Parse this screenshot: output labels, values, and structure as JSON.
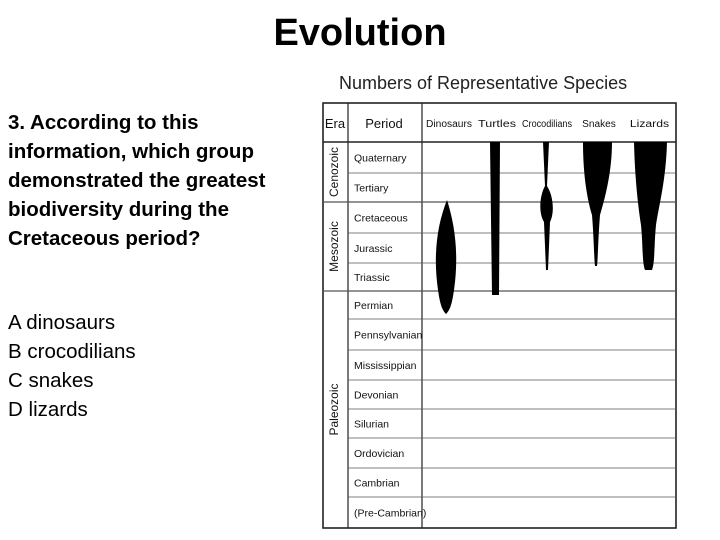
{
  "page_title": "Evolution",
  "question": {
    "text": "3.  According to this information, which group demonstrated the greatest biodiversity during the Cretaceous period?",
    "choices": [
      {
        "letter": "A",
        "text": "dinosaurs"
      },
      {
        "letter": "B",
        "text": "crocodilians"
      },
      {
        "letter": "C",
        "text": "snakes"
      },
      {
        "letter": "D",
        "text": "lizards"
      }
    ]
  },
  "chart_data": {
    "type": "diagram",
    "title": "Numbers of Representative Species",
    "headers": {
      "era": "Era",
      "period": "Period"
    },
    "groups": [
      "Dinosaurs",
      "Turtles",
      "Crocodilians",
      "Snakes",
      "Lizards"
    ],
    "eras": [
      {
        "name": "Cenozoic",
        "periods": [
          "Quaternary",
          "Tertiary"
        ]
      },
      {
        "name": "Mesozoic",
        "periods": [
          "Cretaceous",
          "Jurassic",
          "Triassic"
        ]
      },
      {
        "name": "Paleozoic",
        "periods": [
          "Permian",
          "Pennsylvanian",
          "Mississippian",
          "Devonian",
          "Silurian",
          "Ordovician",
          "Cambrian",
          "(Pre-Cambrian)"
        ]
      }
    ]
  }
}
